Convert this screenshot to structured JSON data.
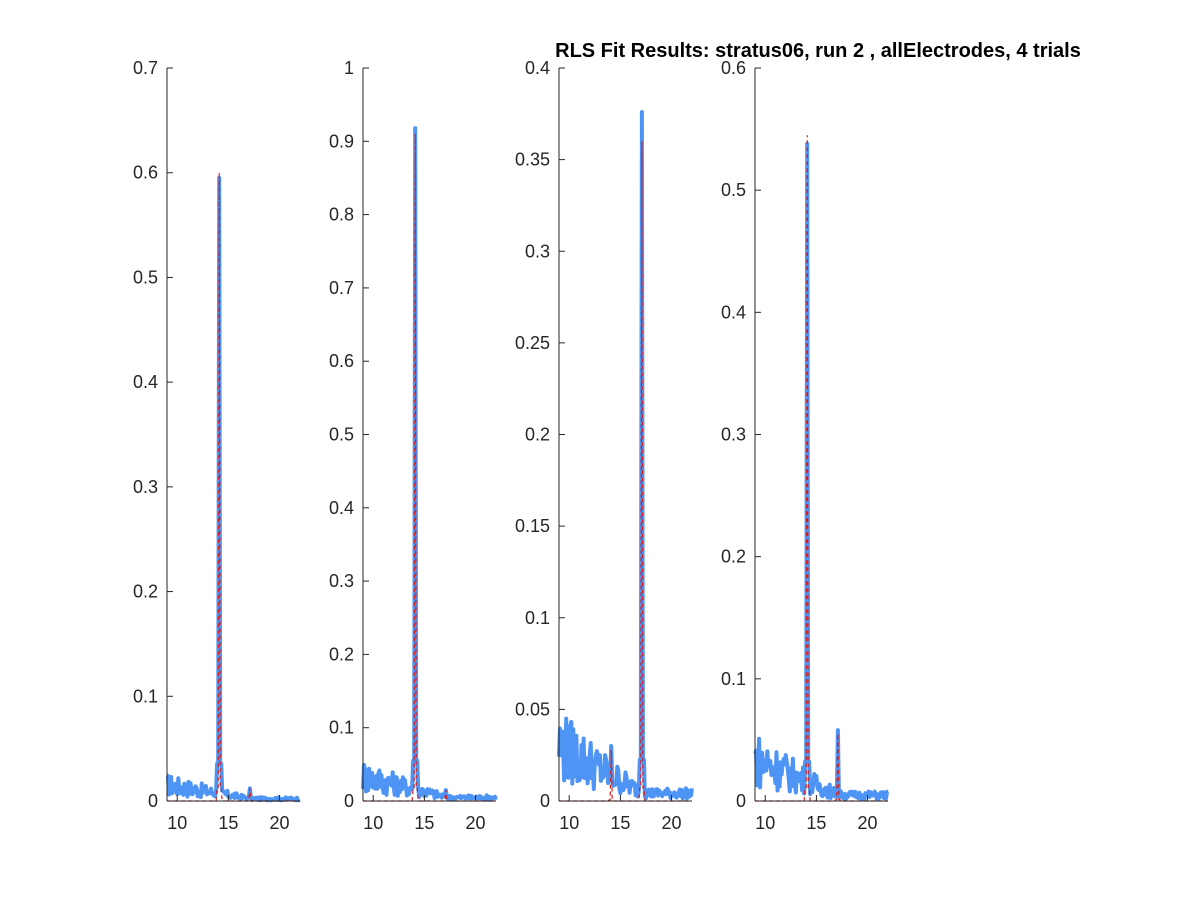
{
  "figure_title": "RLS Fit Results: stratus06, run 2 , allElectrodes, 4 trials",
  "colors": {
    "measured": "#4d94f5",
    "fit": "#d41e1e",
    "axis": "#262626"
  },
  "chart_data": [
    {
      "type": "line",
      "xlim": [
        9,
        22
      ],
      "ylim": [
        0,
        0.7
      ],
      "xticks": [
        10,
        15,
        20
      ],
      "xtick_labels": [
        "10",
        "15",
        "20"
      ],
      "yticks": [
        0,
        0.1,
        0.2,
        0.3,
        0.4,
        0.5,
        0.6,
        0.7
      ],
      "ytick_labels": [
        "0",
        "0.1",
        "0.2",
        "0.3",
        "0.4",
        "0.5",
        "0.6",
        "0.7"
      ],
      "noise_level": 0.018,
      "peaks": [
        {
          "x": 14.1,
          "y": 0.595,
          "fit": 0.6
        },
        {
          "x": 17.1,
          "y": 0.012,
          "fit": 0.012
        }
      ]
    },
    {
      "type": "line",
      "xlim": [
        9,
        22
      ],
      "ylim": [
        0,
        1
      ],
      "xticks": [
        10,
        15,
        20
      ],
      "xtick_labels": [
        "10",
        "15",
        "20"
      ],
      "yticks": [
        0,
        0.1,
        0.2,
        0.3,
        0.4,
        0.5,
        0.6,
        0.7,
        0.8,
        0.9,
        1
      ],
      "ytick_labels": [
        "0",
        "0.1",
        "0.2",
        "0.3",
        "0.4",
        "0.5",
        "0.6",
        "0.7",
        "0.8",
        "0.9",
        "1"
      ],
      "noise_level": 0.04,
      "peaks": [
        {
          "x": 14.1,
          "y": 0.918,
          "fit": 0.91
        },
        {
          "x": 17.1,
          "y": 0.015,
          "fit": 0.015
        }
      ]
    },
    {
      "type": "line",
      "xlim": [
        9,
        22
      ],
      "ylim": [
        0,
        0.4
      ],
      "xticks": [
        10,
        15,
        20
      ],
      "xtick_labels": [
        "10",
        "15",
        "20"
      ],
      "yticks": [
        0,
        0.05,
        0.1,
        0.15,
        0.2,
        0.25,
        0.3,
        0.35,
        0.4
      ],
      "ytick_labels": [
        "0",
        "0.05",
        "0.1",
        "0.15",
        "0.2",
        "0.25",
        "0.3",
        "0.35",
        "0.4"
      ],
      "noise_level": 0.035,
      "peaks": [
        {
          "x": 14.1,
          "y": 0.03,
          "fit": 0.028
        },
        {
          "x": 17.1,
          "y": 0.376,
          "fit": 0.36
        }
      ]
    },
    {
      "type": "line",
      "xlim": [
        9,
        22
      ],
      "ylim": [
        0,
        0.6
      ],
      "xticks": [
        10,
        15,
        20
      ],
      "xtick_labels": [
        "10",
        "15",
        "20"
      ],
      "yticks": [
        0,
        0.1,
        0.2,
        0.3,
        0.4,
        0.5,
        0.6
      ],
      "ytick_labels": [
        "0",
        "0.1",
        "0.2",
        "0.3",
        "0.4",
        "0.5",
        "0.6"
      ],
      "noise_level": 0.04,
      "peaks": [
        {
          "x": 14.1,
          "y": 0.538,
          "fit": 0.545
        },
        {
          "x": 17.1,
          "y": 0.058,
          "fit": 0.055
        }
      ]
    }
  ]
}
